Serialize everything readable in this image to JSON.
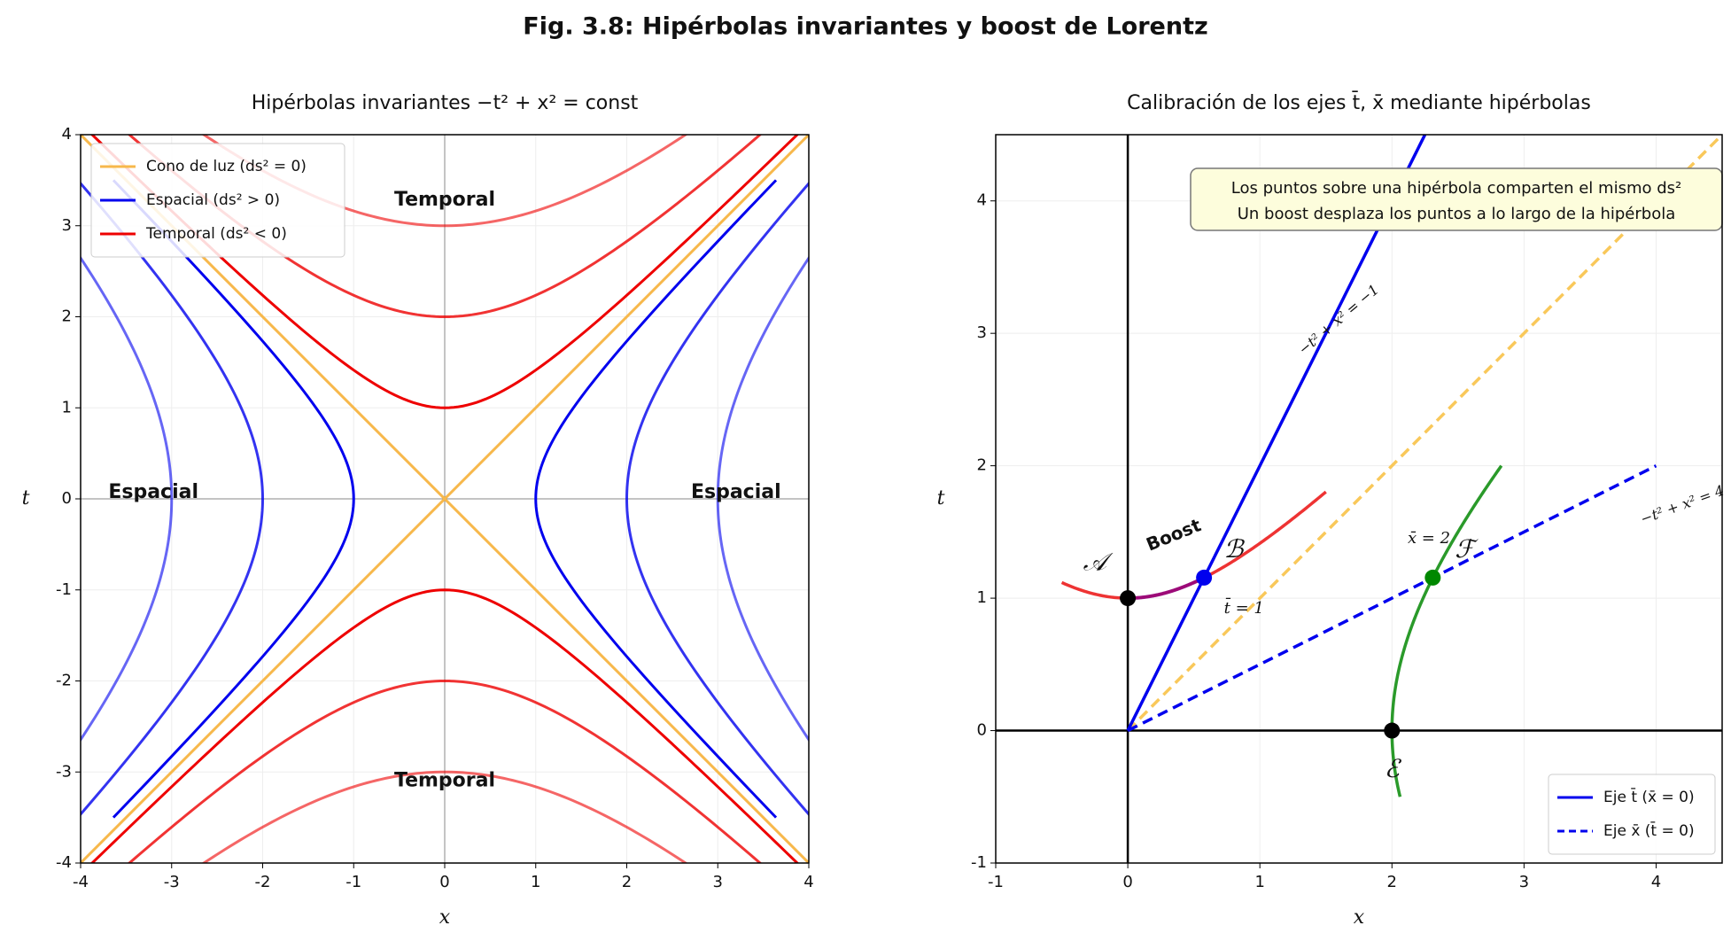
{
  "title": "Fig. 3.8: Hipérbolas invariantes y boost de Lorentz",
  "chart_data": [
    {
      "type": "hyperbola",
      "title": "Hipérbolas invariantes −t² + x² = const",
      "xlabel": "x",
      "ylabel": "t",
      "xlim": [
        -4,
        4
      ],
      "ylim": [
        -4,
        4
      ],
      "xticks": [
        -4,
        -3,
        -2,
        -1,
        0,
        1,
        2,
        3,
        4
      ],
      "yticks": [
        -4,
        -3,
        -2,
        -1,
        0,
        1,
        2,
        3,
        4
      ],
      "grid": true,
      "legend": "upper left",
      "series": [
        {
          "name": "Cono de luz (ds² = 0)",
          "color": "#f7b84b",
          "lines": [
            {
              "x": [
                -4,
                4
              ],
              "values": [
                -4,
                4
              ]
            },
            {
              "x": [
                -4,
                4
              ],
              "values": [
                4,
                -4
              ]
            }
          ]
        },
        {
          "name": "Espacial (ds² > 0)",
          "color": "#0000ee",
          "invariants": [
            1,
            4,
            9
          ],
          "opacities": [
            1,
            0.8,
            0.6
          ],
          "t_range": [
            -3.5,
            3.5
          ]
        },
        {
          "name": "Temporal (ds² < 0)",
          "color": "#ee0000",
          "invariants": [
            -1,
            -4,
            -9
          ],
          "opacities": [
            1,
            0.8,
            0.6
          ],
          "x_range": [
            -4,
            4
          ]
        }
      ],
      "annotations": [
        {
          "text": "Temporal",
          "color": "#ee0000"
        },
        {
          "text": "Temporal",
          "color": "#ee0000"
        },
        {
          "text": "Espacial",
          "color": "#0000ee"
        },
        {
          "text": "Espacial",
          "color": "#0000ee"
        }
      ]
    },
    {
      "type": "calibration",
      "title": "Calibración de los ejes t̄, x̄ mediante hipérbolas",
      "xlabel": "x",
      "ylabel": "t",
      "xlim": [
        -1,
        4.5
      ],
      "ylim": [
        -1,
        4.5
      ],
      "xticks": [
        -1,
        0,
        1,
        2,
        3,
        4
      ],
      "yticks": [
        -1,
        0,
        1,
        2,
        3,
        4
      ],
      "grid": true,
      "legend": "lower right",
      "light_cone": {
        "color": "#f9c85a",
        "x": [
          0,
          4.5
        ],
        "values": [
          0,
          4.5
        ]
      },
      "series": [
        {
          "name": "Eje t̄ (x̄ = 0)",
          "color": "#0000ee",
          "dashed": false,
          "x": [
            0,
            2.25
          ],
          "values": [
            0,
            4.5
          ]
        },
        {
          "name": "Eje x̄ (t̄ = 0)",
          "color": "#0000ee",
          "dashed": true,
          "x": [
            0,
            4
          ],
          "values": [
            0,
            2
          ]
        }
      ],
      "curves": [
        {
          "invariant": -1,
          "color": "#ee3333",
          "range": [
            -0.5,
            1.5
          ],
          "label": "−t² + x² = −1"
        },
        {
          "invariant": 4,
          "color": "#2a9a2a",
          "range": [
            -0.5,
            2
          ],
          "label": "−t² + x² = 4"
        }
      ],
      "boost": {
        "invariant": -1,
        "range": [
          0,
          0.577
        ],
        "color": "#880088",
        "label": "Boost"
      },
      "points": [
        {
          "label": "𝒜",
          "x": 0,
          "y": 1,
          "color": "#000000"
        },
        {
          "label": "ℬ",
          "x": 0.577,
          "y": 1.155,
          "color": "#0000ee"
        },
        {
          "label": "ℰ",
          "x": 2,
          "y": 0,
          "color": "#000000"
        },
        {
          "label": "ℱ",
          "x": 2.309,
          "y": 1.155,
          "color": "#008800"
        }
      ],
      "annotations": [
        {
          "text": "t̄ = 1",
          "color": "#0000ee"
        },
        {
          "text": "x̄ = 2",
          "color": "#008800"
        }
      ],
      "note": [
        "Los puntos sobre una hipérbola comparten el mismo ds²",
        "Un boost desplaza los puntos a lo largo de la hipérbola"
      ]
    }
  ]
}
